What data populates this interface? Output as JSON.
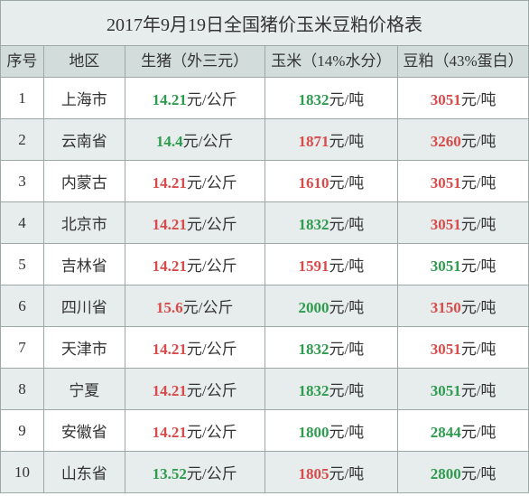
{
  "title": "2017年9月19日全国猪价玉米豆粕价格表",
  "colors": {
    "green": "#2e9b4f",
    "red": "#d94b4b",
    "text": "#333333"
  },
  "columns": [
    "序号",
    "地区",
    "生猪（外三元）",
    "玉米（14%水分）",
    "豆粕（43%蛋白）"
  ],
  "units": {
    "pig": "元/公斤",
    "corn": "元/吨",
    "soy": "元/吨"
  },
  "rows": [
    {
      "idx": "1",
      "region": "上海市",
      "pig_val": "14.21",
      "pig_color": "green",
      "corn_val": "1832",
      "corn_color": "green",
      "soy_val": "3051",
      "soy_color": "red"
    },
    {
      "idx": "2",
      "region": "云南省",
      "pig_val": "14.4",
      "pig_color": "green",
      "corn_val": "1871",
      "corn_color": "red",
      "soy_val": "3260",
      "soy_color": "red"
    },
    {
      "idx": "3",
      "region": "内蒙古",
      "pig_val": "14.21",
      "pig_color": "red",
      "corn_val": "1610",
      "corn_color": "red",
      "soy_val": "3051",
      "soy_color": "red"
    },
    {
      "idx": "4",
      "region": "北京市",
      "pig_val": "14.21",
      "pig_color": "red",
      "corn_val": "1832",
      "corn_color": "green",
      "soy_val": "3051",
      "soy_color": "red"
    },
    {
      "idx": "5",
      "region": "吉林省",
      "pig_val": "14.21",
      "pig_color": "red",
      "corn_val": "1591",
      "corn_color": "red",
      "soy_val": "3051",
      "soy_color": "green"
    },
    {
      "idx": "6",
      "region": "四川省",
      "pig_val": "15.6",
      "pig_color": "red",
      "corn_val": "2000",
      "corn_color": "green",
      "soy_val": "3150",
      "soy_color": "red"
    },
    {
      "idx": "7",
      "region": "天津市",
      "pig_val": "14.21",
      "pig_color": "red",
      "corn_val": "1832",
      "corn_color": "green",
      "soy_val": "3051",
      "soy_color": "red"
    },
    {
      "idx": "8",
      "region": "宁夏",
      "pig_val": "14.21",
      "pig_color": "red",
      "corn_val": "1832",
      "corn_color": "green",
      "soy_val": "3051",
      "soy_color": "green"
    },
    {
      "idx": "9",
      "region": "安徽省",
      "pig_val": "14.21",
      "pig_color": "red",
      "corn_val": "1800",
      "corn_color": "green",
      "soy_val": "2844",
      "soy_color": "green"
    },
    {
      "idx": "10",
      "region": "山东省",
      "pig_val": "13.52",
      "pig_color": "green",
      "corn_val": "1805",
      "corn_color": "red",
      "soy_val": "2800",
      "soy_color": "green"
    }
  ]
}
